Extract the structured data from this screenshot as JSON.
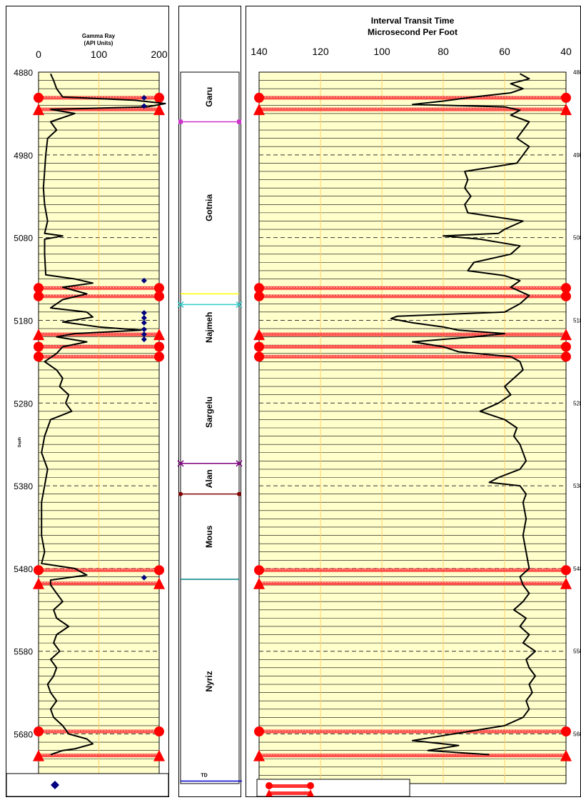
{
  "chart_data": [
    {
      "type": "line",
      "title": "Gamma Ray",
      "subtitle": "(API Units)",
      "ylabel": "Depth",
      "xlim": [
        0,
        200
      ],
      "xticks": [
        "0",
        "100",
        "200"
      ],
      "ylim": [
        4880,
        5740
      ],
      "yticks": [
        "4880",
        "4980",
        "5080",
        "5180",
        "5280",
        "5380",
        "5480",
        "5580",
        "5680"
      ],
      "y_reversed": true,
      "grid": true,
      "legend_position": "bottom",
      "series": [
        {
          "style": "line",
          "color": "#000000",
          "points": [
            [
              4882,
              20
            ],
            [
              4890,
              25
            ],
            [
              4900,
              30
            ],
            [
              4910,
              40
            ],
            [
              4914,
              160
            ],
            [
              4918,
              210
            ],
            [
              4922,
              180
            ],
            [
              4925,
              20
            ],
            [
              4930,
              60
            ],
            [
              4940,
              20
            ],
            [
              4950,
              30
            ],
            [
              4960,
              15
            ],
            [
              4980,
              12
            ],
            [
              5000,
              10
            ],
            [
              5020,
              8
            ],
            [
              5040,
              10
            ],
            [
              5060,
              15
            ],
            [
              5075,
              10
            ],
            [
              5078,
              40
            ],
            [
              5082,
              10
            ],
            [
              5100,
              10
            ],
            [
              5125,
              12
            ],
            [
              5130,
              60
            ],
            [
              5135,
              90
            ],
            [
              5140,
              40
            ],
            [
              5148,
              80
            ],
            [
              5155,
              40
            ],
            [
              5165,
              20
            ],
            [
              5170,
              80
            ],
            [
              5176,
              90
            ],
            [
              5182,
              40
            ],
            [
              5188,
              100
            ],
            [
              5192,
              170
            ],
            [
              5196,
              60
            ],
            [
              5200,
              30
            ],
            [
              5206,
              80
            ],
            [
              5212,
              40
            ],
            [
              5220,
              30
            ],
            [
              5230,
              10
            ],
            [
              5240,
              30
            ],
            [
              5250,
              40
            ],
            [
              5260,
              35
            ],
            [
              5270,
              50
            ],
            [
              5280,
              45
            ],
            [
              5290,
              55
            ],
            [
              5300,
              20
            ],
            [
              5310,
              15
            ],
            [
              5320,
              10
            ],
            [
              5340,
              5
            ],
            [
              5360,
              15
            ],
            [
              5380,
              10
            ],
            [
              5400,
              5
            ],
            [
              5420,
              5
            ],
            [
              5440,
              5
            ],
            [
              5460,
              10
            ],
            [
              5474,
              5
            ],
            [
              5480,
              60
            ],
            [
              5488,
              80
            ],
            [
              5494,
              20
            ],
            [
              5500,
              20
            ],
            [
              5510,
              30
            ],
            [
              5520,
              40
            ],
            [
              5530,
              25
            ],
            [
              5540,
              30
            ],
            [
              5550,
              50
            ],
            [
              5560,
              30
            ],
            [
              5570,
              25
            ],
            [
              5580,
              35
            ],
            [
              5590,
              20
            ],
            [
              5600,
              30
            ],
            [
              5610,
              25
            ],
            [
              5620,
              15
            ],
            [
              5630,
              20
            ],
            [
              5640,
              30
            ],
            [
              5650,
              20
            ],
            [
              5660,
              25
            ],
            [
              5670,
              40
            ],
            [
              5680,
              50
            ],
            [
              5686,
              80
            ],
            [
              5692,
              90
            ],
            [
              5698,
              60
            ],
            [
              5700,
              40
            ],
            [
              5705,
              20
            ]
          ]
        },
        {
          "style": "markers",
          "color": "#000080",
          "marker": "diamond",
          "points": [
            [
              4911,
              175
            ],
            [
              4921,
              175
            ],
            [
              5132,
              175
            ],
            [
              5171,
              175
            ],
            [
              5177,
              175
            ],
            [
              5183,
              175
            ],
            [
              5191,
              175
            ],
            [
              5197,
              175
            ],
            [
              5203,
              175
            ],
            [
              5491,
              175
            ]
          ]
        }
      ],
      "markers": [
        {
          "depth": 4911,
          "shape": "circle"
        },
        {
          "depth": 4925,
          "shape": "triangle"
        },
        {
          "depth": 5141,
          "shape": "circle"
        },
        {
          "depth": 5151,
          "shape": "circle"
        },
        {
          "depth": 5197,
          "shape": "triangle"
        },
        {
          "depth": 5212,
          "shape": "circle"
        },
        {
          "depth": 5224,
          "shape": "circle"
        },
        {
          "depth": 5482,
          "shape": "circle"
        },
        {
          "depth": 5498,
          "shape": "triangle"
        },
        {
          "depth": 5677,
          "shape": "circle"
        },
        {
          "depth": 5706,
          "shape": "triangle"
        }
      ]
    },
    {
      "type": "table",
      "ylim": [
        4880,
        5740
      ],
      "y_reversed": true,
      "formations": [
        {
          "name": "Garu",
          "top": 4880,
          "bottom": 4940
        },
        {
          "name": "Gotnia",
          "top": 4940,
          "bottom": 5148
        },
        {
          "name": "Najmeh",
          "top": 5148,
          "bottom": 5229
        },
        {
          "name": "Sargelu",
          "top": 5229,
          "bottom": 5353
        },
        {
          "name": "Alan",
          "top": 5353,
          "bottom": 5390
        },
        {
          "name": "Mous",
          "top": 5390,
          "bottom": 5493
        },
        {
          "name": "Nyriz",
          "top": 5493,
          "bottom": 5740
        }
      ],
      "boundaries": [
        {
          "depth": 4940,
          "color": "#cc33cc",
          "marker": "square"
        },
        {
          "depth": 5148,
          "color": "#ffff00",
          "marker": "none"
        },
        {
          "depth": 5161,
          "color": "#33cccc",
          "marker": "x"
        },
        {
          "depth": 5353,
          "color": "#7f0080",
          "marker": "x"
        },
        {
          "depth": 5390,
          "color": "#800000",
          "marker": "circle"
        },
        {
          "depth": 5493,
          "color": "#008080",
          "marker": "none"
        }
      ],
      "td_label": "TD",
      "td_depth": 5737
    },
    {
      "type": "line",
      "title": "Interval Transit Time",
      "subtitle": "Microsecond Per Foot",
      "xlim": [
        140,
        40
      ],
      "x_reversed": true,
      "xticks": [
        "140",
        "120",
        "100",
        "80",
        "60",
        "40"
      ],
      "ylim": [
        4880,
        5740
      ],
      "y_reversed": true,
      "yticks": [
        "488",
        "498",
        "508",
        "518",
        "528",
        "538",
        "548",
        "558",
        "568"
      ],
      "grid": true,
      "legend_position": "bottom",
      "series": [
        {
          "style": "line",
          "color": "#000000",
          "points": [
            [
              4882,
              55
            ],
            [
              4888,
              52
            ],
            [
              4894,
              58
            ],
            [
              4900,
              54
            ],
            [
              4905,
              58
            ],
            [
              4910,
              70
            ],
            [
              4915,
              80
            ],
            [
              4919,
              90
            ],
            [
              4922,
              60
            ],
            [
              4926,
              55
            ],
            [
              4932,
              58
            ],
            [
              4940,
              52
            ],
            [
              4950,
              54
            ],
            [
              4960,
              56
            ],
            [
              4970,
              52
            ],
            [
              4980,
              54
            ],
            [
              4990,
              56
            ],
            [
              5000,
              73
            ],
            [
              5010,
              72
            ],
            [
              5020,
              73
            ],
            [
              5030,
              71
            ],
            [
              5040,
              73
            ],
            [
              5050,
              72
            ],
            [
              5060,
              54
            ],
            [
              5070,
              60
            ],
            [
              5075,
              62
            ],
            [
              5078,
              80
            ],
            [
              5082,
              68
            ],
            [
              5090,
              55
            ],
            [
              5100,
              58
            ],
            [
              5110,
              70
            ],
            [
              5120,
              72
            ],
            [
              5126,
              60
            ],
            [
              5132,
              55
            ],
            [
              5140,
              58
            ],
            [
              5150,
              52
            ],
            [
              5160,
              55
            ],
            [
              5170,
              60
            ],
            [
              5175,
              95
            ],
            [
              5178,
              97
            ],
            [
              5183,
              90
            ],
            [
              5188,
              80
            ],
            [
              5192,
              75
            ],
            [
              5196,
              60
            ],
            [
              5200,
              70
            ],
            [
              5206,
              90
            ],
            [
              5212,
              80
            ],
            [
              5218,
              75
            ],
            [
              5224,
              58
            ],
            [
              5230,
              55
            ],
            [
              5240,
              54
            ],
            [
              5250,
              57
            ],
            [
              5260,
              60
            ],
            [
              5270,
              58
            ],
            [
              5280,
              62
            ],
            [
              5290,
              68
            ],
            [
              5300,
              60
            ],
            [
              5310,
              56
            ],
            [
              5320,
              57
            ],
            [
              5330,
              55
            ],
            [
              5340,
              54
            ],
            [
              5350,
              53
            ],
            [
              5360,
              55
            ],
            [
              5370,
              62
            ],
            [
              5376,
              65
            ],
            [
              5380,
              55
            ],
            [
              5390,
              53
            ],
            [
              5400,
              54
            ],
            [
              5420,
              53
            ],
            [
              5440,
              54
            ],
            [
              5460,
              53
            ],
            [
              5480,
              52
            ],
            [
              5490,
              55
            ],
            [
              5500,
              54
            ],
            [
              5510,
              52
            ],
            [
              5520,
              54
            ],
            [
              5530,
              57
            ],
            [
              5540,
              53
            ],
            [
              5550,
              55
            ],
            [
              5560,
              52
            ],
            [
              5570,
              54
            ],
            [
              5580,
              50
            ],
            [
              5590,
              53
            ],
            [
              5600,
              52
            ],
            [
              5610,
              50
            ],
            [
              5620,
              52
            ],
            [
              5630,
              51
            ],
            [
              5640,
              53
            ],
            [
              5650,
              52
            ],
            [
              5660,
              54
            ],
            [
              5670,
              60
            ],
            [
              5676,
              70
            ],
            [
              5682,
              80
            ],
            [
              5688,
              90
            ],
            [
              5694,
              75
            ],
            [
              5700,
              85
            ],
            [
              5705,
              65
            ]
          ]
        }
      ],
      "markers": [
        {
          "depth": 4911,
          "shape": "circle"
        },
        {
          "depth": 4925,
          "shape": "triangle"
        },
        {
          "depth": 5141,
          "shape": "circle"
        },
        {
          "depth": 5151,
          "shape": "circle"
        },
        {
          "depth": 5197,
          "shape": "triangle"
        },
        {
          "depth": 5212,
          "shape": "circle"
        },
        {
          "depth": 5224,
          "shape": "circle"
        },
        {
          "depth": 5482,
          "shape": "circle"
        },
        {
          "depth": 5498,
          "shape": "triangle"
        },
        {
          "depth": 5677,
          "shape": "circle"
        },
        {
          "depth": 5706,
          "shape": "triangle"
        }
      ]
    }
  ],
  "colors": {
    "plot_background": "#ffffcc",
    "vertical_grid": "#ffcc66",
    "horizontal_grid": "#000000",
    "dashed_grid": "#333333",
    "log_curve": "#000000",
    "diamond_marker": "#000080",
    "band_fill": "#ff3333",
    "band_marker": "#ff0000"
  }
}
